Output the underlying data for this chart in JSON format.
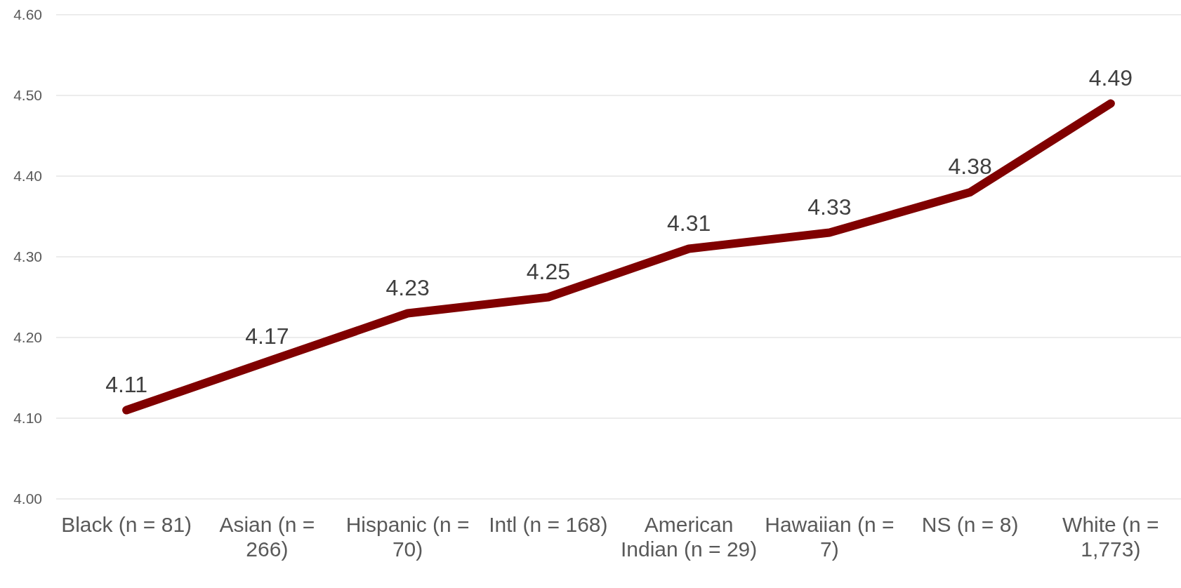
{
  "chart_data": {
    "type": "line",
    "categories": [
      "Black (n = 81)",
      "Asian (n = 266)",
      "Hispanic (n = 70)",
      "Intl (n = 168)",
      "American Indian (n = 29)",
      "Hawaiian (n = 7)",
      "NS (n = 8)",
      "White (n = 1,773)"
    ],
    "series": [
      {
        "color": "#800000",
        "values": [
          4.11,
          4.17,
          4.23,
          4.25,
          4.31,
          4.33,
          4.38,
          4.49
        ]
      }
    ],
    "ylim": [
      4.0,
      4.6
    ],
    "yticks": [
      {
        "value": 4.0,
        "label": "4.00"
      },
      {
        "value": 4.1,
        "label": "4.10"
      },
      {
        "value": 4.2,
        "label": "4.20"
      },
      {
        "value": 4.3,
        "label": "4.30"
      },
      {
        "value": 4.4,
        "label": "4.40"
      },
      {
        "value": 4.5,
        "label": "4.50"
      },
      {
        "value": 4.6,
        "label": "4.60"
      }
    ],
    "grid": "y",
    "data_labels": true,
    "marker": "none",
    "line_style": "solid"
  }
}
